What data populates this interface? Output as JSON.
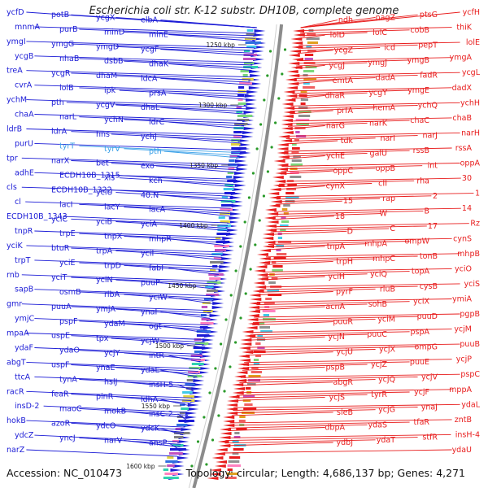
{
  "title": "Escherichia coli str. K-12 substr. DH10B, complete genome",
  "footer": {
    "accession": "Accession: NC_010473",
    "summary": "Topology: circular; Length: 4,686,137 bp; Genes: 4,271"
  },
  "colors": {
    "forward": "#1b1bd6",
    "reverse": "#e81c1c",
    "highlight": "#3aa0e8",
    "backbone": "#8c8c8c",
    "tick_dot": "#2a9a2a"
  },
  "ticks": [
    "1250 kbp",
    "1300 kbp",
    "1350 kbp",
    "1400 kbp",
    "1450 kbp",
    "1500 kbp",
    "1550 kbp",
    "1600 kbp"
  ],
  "genes_left": [
    "ycfD",
    "potB",
    "ycgX",
    "elbA",
    "mnmA",
    "purB",
    "minD",
    "minE",
    "ymgI",
    "ymgG",
    "ymgD",
    "ycgF",
    "ycgB",
    "nhaB",
    "dsbB",
    "dhaK",
    "treA",
    "ycgR",
    "dhaM",
    "ldcA",
    "cvrA",
    "lolB",
    "ipk",
    "prsA",
    "ychM",
    "pth",
    "ycgV",
    "dhaL",
    "chaA",
    "narL",
    "ychN",
    "ldrC",
    "ldrB",
    "ldrA",
    "hns",
    "ychJ",
    "purU",
    "tyrT",
    "tyrV",
    "pth",
    "tpr",
    "narX",
    "bet",
    "exo",
    "adhE",
    "ECDH10B_1315",
    "xis",
    "kch",
    "cls",
    "ECDH10B_1322",
    "yciU",
    "40.N",
    "cl",
    "lacI",
    "lacY",
    "lacA",
    "ECDH10B_1343",
    "yciC",
    "yciB",
    "yciA",
    "tnpR",
    "trpE",
    "tnpX",
    "mhpR",
    "yciK",
    "btuR",
    "trpA",
    "yciI",
    "trpT",
    "yciE",
    "trpD",
    "fabI",
    "rnb",
    "yciT",
    "yciN",
    "puuP",
    "sapB",
    "osmB",
    "ribA",
    "yciW",
    "gmr",
    "puuA",
    "ymjA",
    "ynaI",
    "ymjC",
    "pspF",
    "ydaM",
    "ogt",
    "mpaA",
    "uspE",
    "tpx",
    "ycjW",
    "ydaF",
    "ydaO",
    "ycjY",
    "intR",
    "abgT",
    "uspF",
    "ynaE",
    "ydaE",
    "ttcA",
    "tynA",
    "hslJ",
    "insH-5",
    "racR",
    "feaR",
    "pinR",
    "ldhA",
    "insD-2",
    "maoC",
    "mokB",
    "insC-2",
    "hokB",
    "azoR",
    "ydcO",
    "ydcK",
    "ydcZ",
    "yncJ",
    "narV",
    "ansP",
    "narZ"
  ],
  "genes_right": [
    "ycfH",
    "ptsG",
    "nagZ",
    "ndh",
    "thiK",
    "cobB",
    "lolC",
    "lolD",
    "lolE",
    "pepT",
    "icd",
    "ycgZ",
    "ymgA",
    "ymgB",
    "ymgJ",
    "ycgJ",
    "ycgL",
    "fadR",
    "dadA",
    "emtA",
    "dadX",
    "ymgE",
    "ycgY",
    "dhaR",
    "ychH",
    "ychQ",
    "hemA",
    "prfA",
    "chaB",
    "chaC",
    "narK",
    "narG",
    "narH",
    "narJ",
    "narI",
    "tdk",
    "rssA",
    "rssB",
    "galU",
    "ychE",
    "oppA",
    "int",
    "oppB",
    "oppC",
    "30",
    "rha",
    "cII",
    "cynX",
    "1",
    "2",
    "rap",
    "15",
    "14",
    "B",
    "W",
    "18",
    "Rz",
    "17",
    "C",
    "D",
    "cynS",
    "ompW",
    "mhpA",
    "tnpA",
    "mhpB",
    "tonB",
    "mhpC",
    "trpH",
    "yciO",
    "topA",
    "yciQ",
    "yciH",
    "yciS",
    "cysB",
    "rluB",
    "pyrF",
    "ymiA",
    "yciX",
    "sohB",
    "acnA",
    "pgpB",
    "puuD",
    "yciM",
    "puuR",
    "ycjM",
    "pspA",
    "puuC",
    "ycjN",
    "puuB",
    "ompG",
    "ycjX",
    "ycjU",
    "ycjP",
    "puuE",
    "ycjZ",
    "pspB",
    "pspC",
    "ycjV",
    "ycjQ",
    "abgR",
    "mppA",
    "ycjF",
    "tyrR",
    "ycjS",
    "ydaL",
    "ynaJ",
    "ycjG",
    "sieB",
    "zntB",
    "tfaR",
    "ydaS",
    "dbpA",
    "insH-4",
    "stfR",
    "ydaT",
    "ydbJ",
    "ydaU"
  ]
}
